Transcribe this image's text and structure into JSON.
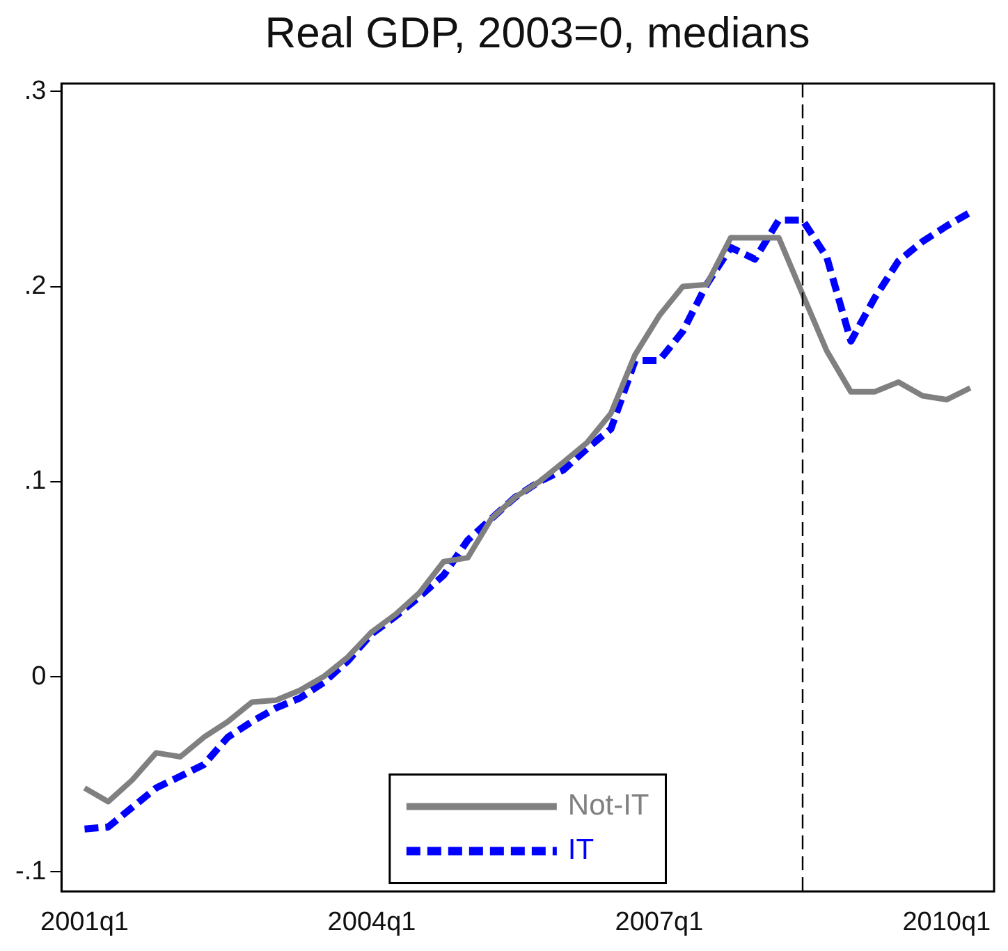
{
  "chart_data": {
    "type": "line",
    "title": "Real GDP, 2003=0, medians",
    "x": [
      "2001-01",
      "2001-04",
      "2001-07",
      "2001-10",
      "2002-01",
      "2002-04",
      "2002-07",
      "2002-10",
      "2003-01",
      "2003-04",
      "2003-07",
      "2003-10",
      "2004-01",
      "2004-04",
      "2004-07",
      "2004-10",
      "2005-01",
      "2005-04",
      "2005-07",
      "2005-10",
      "2006-01",
      "2006-04",
      "2006-07",
      "2006-10",
      "2007-01",
      "2007-04",
      "2007-07",
      "2007-10",
      "2008-01",
      "2008-04",
      "2008-07",
      "2008-10",
      "2009-01",
      "2009-04",
      "2009-07",
      "2009-10",
      "2010-01",
      "2010-04"
    ],
    "series": [
      {
        "name": "Not-IT",
        "color": "#808080",
        "line_style": "solid",
        "values": [
          -0.057,
          -0.064,
          -0.053,
          -0.039,
          -0.041,
          -0.031,
          -0.023,
          -0.013,
          -0.012,
          -0.007,
          0.0,
          0.01,
          0.023,
          0.032,
          0.043,
          0.059,
          0.061,
          0.081,
          0.092,
          0.1,
          0.11,
          0.12,
          0.135,
          0.165,
          0.185,
          0.2,
          0.201,
          0.225,
          0.225,
          0.225,
          0.196,
          0.167,
          0.146,
          0.146,
          0.151,
          0.144,
          0.142,
          0.148
        ]
      },
      {
        "name": "IT",
        "color": "#0000ff",
        "line_style": "dashed",
        "values": [
          -0.078,
          -0.077,
          -0.067,
          -0.057,
          -0.051,
          -0.045,
          -0.031,
          -0.023,
          -0.016,
          -0.011,
          -0.003,
          0.008,
          0.022,
          0.031,
          0.041,
          0.052,
          0.07,
          0.081,
          0.092,
          0.1,
          0.106,
          0.117,
          0.127,
          0.162,
          0.162,
          0.177,
          0.201,
          0.22,
          0.214,
          0.234,
          0.234,
          0.215,
          0.172,
          0.194,
          0.213,
          0.223,
          0.231,
          0.238
        ]
      }
    ],
    "xlim": [
      "2000-10-05",
      "2010-07-01"
    ],
    "xticks": [
      {
        "value": "2001-01",
        "label": "2001q1"
      },
      {
        "value": "2004-01",
        "label": "2004q1"
      },
      {
        "value": "2007-01",
        "label": "2007q1"
      },
      {
        "value": "2010-01",
        "label": "2010q1"
      }
    ],
    "ylim": [
      -0.11,
      0.304
    ],
    "yticks": [
      {
        "value": -0.1,
        "label": "-.1"
      },
      {
        "value": 0,
        "label": "0"
      },
      {
        "value": 0.1,
        "label": ".1"
      },
      {
        "value": 0.2,
        "label": ".2"
      },
      {
        "value": 0.3,
        "label": ".3"
      }
    ],
    "ref_lines": [
      {
        "axis": "x",
        "value": "2008-07",
        "color": "#000000",
        "line_style": "dashed"
      }
    ],
    "grid": false,
    "legend": "bottom",
    "marker": "none"
  }
}
